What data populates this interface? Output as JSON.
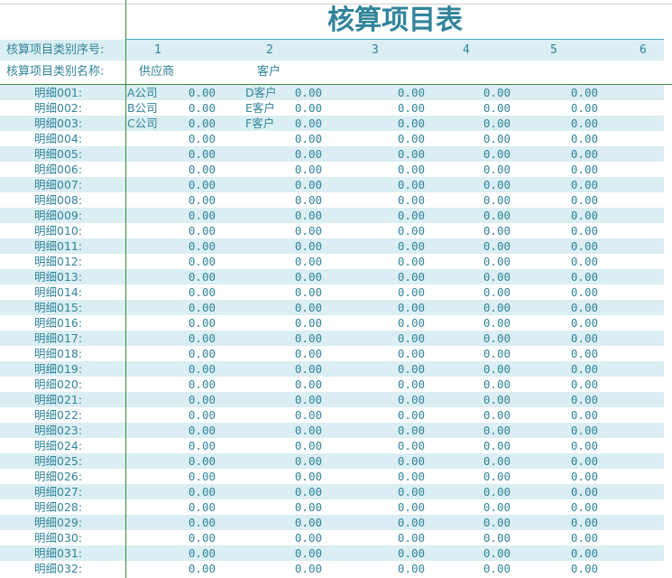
{
  "title": "核算项目表",
  "seq_label": "核算项目类别序号:",
  "seq": [
    "1",
    "2",
    "3",
    "4",
    "5",
    "6"
  ],
  "name_label": "核算项目类别名称:",
  "names": [
    "供应商",
    "客户"
  ],
  "colors": {
    "text": "#31849b",
    "band": "#daeef3",
    "grid": "#3a8a3a"
  },
  "rows": [
    [
      "明细001:",
      "A公司",
      "0.00",
      "D客户",
      "0.00",
      "0.00",
      "0.00",
      "0.00"
    ],
    [
      "明细002:",
      "B公司",
      "0.00",
      "E客户",
      "0.00",
      "0.00",
      "0.00",
      "0.00"
    ],
    [
      "明细003:",
      "C公司",
      "0.00",
      "F客户",
      "0.00",
      "0.00",
      "0.00",
      "0.00"
    ],
    [
      "明细004:",
      "",
      "0.00",
      "",
      "0.00",
      "0.00",
      "0.00",
      "0.00"
    ],
    [
      "明细005:",
      "",
      "0.00",
      "",
      "0.00",
      "0.00",
      "0.00",
      "0.00"
    ],
    [
      "明细006:",
      "",
      "0.00",
      "",
      "0.00",
      "0.00",
      "0.00",
      "0.00"
    ],
    [
      "明细007:",
      "",
      "0.00",
      "",
      "0.00",
      "0.00",
      "0.00",
      "0.00"
    ],
    [
      "明细008:",
      "",
      "0.00",
      "",
      "0.00",
      "0.00",
      "0.00",
      "0.00"
    ],
    [
      "明细009:",
      "",
      "0.00",
      "",
      "0.00",
      "0.00",
      "0.00",
      "0.00"
    ],
    [
      "明细010:",
      "",
      "0.00",
      "",
      "0.00",
      "0.00",
      "0.00",
      "0.00"
    ],
    [
      "明细011:",
      "",
      "0.00",
      "",
      "0.00",
      "0.00",
      "0.00",
      "0.00"
    ],
    [
      "明细012:",
      "",
      "0.00",
      "",
      "0.00",
      "0.00",
      "0.00",
      "0.00"
    ],
    [
      "明细013:",
      "",
      "0.00",
      "",
      "0.00",
      "0.00",
      "0.00",
      "0.00"
    ],
    [
      "明细014:",
      "",
      "0.00",
      "",
      "0.00",
      "0.00",
      "0.00",
      "0.00"
    ],
    [
      "明细015:",
      "",
      "0.00",
      "",
      "0.00",
      "0.00",
      "0.00",
      "0.00"
    ],
    [
      "明细016:",
      "",
      "0.00",
      "",
      "0.00",
      "0.00",
      "0.00",
      "0.00"
    ],
    [
      "明细017:",
      "",
      "0.00",
      "",
      "0.00",
      "0.00",
      "0.00",
      "0.00"
    ],
    [
      "明细018:",
      "",
      "0.00",
      "",
      "0.00",
      "0.00",
      "0.00",
      "0.00"
    ],
    [
      "明细019:",
      "",
      "0.00",
      "",
      "0.00",
      "0.00",
      "0.00",
      "0.00"
    ],
    [
      "明细020:",
      "",
      "0.00",
      "",
      "0.00",
      "0.00",
      "0.00",
      "0.00"
    ],
    [
      "明细021:",
      "",
      "0.00",
      "",
      "0.00",
      "0.00",
      "0.00",
      "0.00"
    ],
    [
      "明细022:",
      "",
      "0.00",
      "",
      "0.00",
      "0.00",
      "0.00",
      "0.00"
    ],
    [
      "明细023:",
      "",
      "0.00",
      "",
      "0.00",
      "0.00",
      "0.00",
      "0.00"
    ],
    [
      "明细024:",
      "",
      "0.00",
      "",
      "0.00",
      "0.00",
      "0.00",
      "0.00"
    ],
    [
      "明细025:",
      "",
      "0.00",
      "",
      "0.00",
      "0.00",
      "0.00",
      "0.00"
    ],
    [
      "明细026:",
      "",
      "0.00",
      "",
      "0.00",
      "0.00",
      "0.00",
      "0.00"
    ],
    [
      "明细027:",
      "",
      "0.00",
      "",
      "0.00",
      "0.00",
      "0.00",
      "0.00"
    ],
    [
      "明细028:",
      "",
      "0.00",
      "",
      "0.00",
      "0.00",
      "0.00",
      "0.00"
    ],
    [
      "明细029:",
      "",
      "0.00",
      "",
      "0.00",
      "0.00",
      "0.00",
      "0.00"
    ],
    [
      "明细030:",
      "",
      "0.00",
      "",
      "0.00",
      "0.00",
      "0.00",
      "0.00"
    ],
    [
      "明细031:",
      "",
      "0.00",
      "",
      "0.00",
      "0.00",
      "0.00",
      "0.00"
    ],
    [
      "明细032:",
      "",
      "0.00",
      "",
      "0.00",
      "0.00",
      "0.00",
      "0.00"
    ]
  ]
}
